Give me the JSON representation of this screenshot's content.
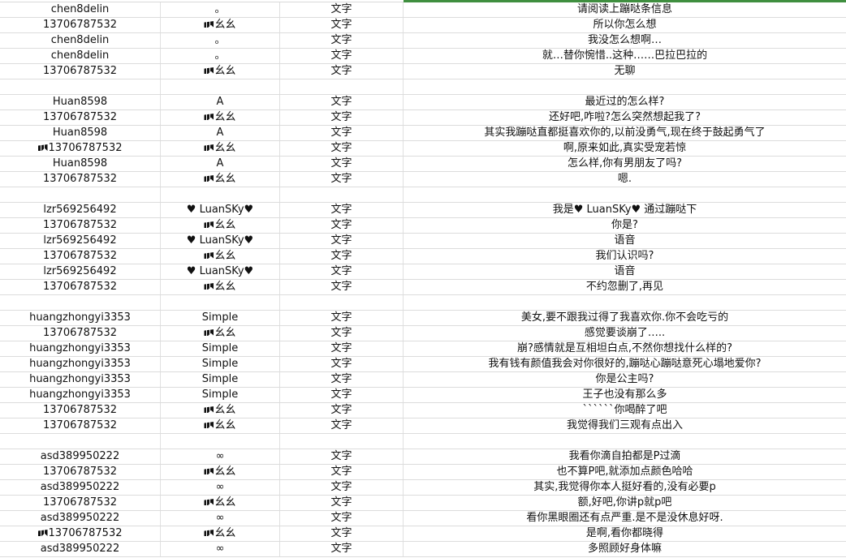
{
  "sheet": {
    "accent_color": "#3f8f3f",
    "rows": [
      {
        "user": "chen8delin",
        "nick": "。",
        "type": "文字",
        "msg": "请阅读上蹦哒条信息"
      },
      {
        "user": "13706787532",
        "nick": "幺幺",
        "nick_icon": "emoji-glyph",
        "type": "文字",
        "msg": "所以你怎么想"
      },
      {
        "user": "chen8delin",
        "nick": "。",
        "type": "文字",
        "msg": "我没怎么想啊…"
      },
      {
        "user": "chen8delin",
        "nick": "。",
        "type": "文字",
        "msg": "就…替你惋惜..这种……巴拉巴拉的"
      },
      {
        "user": "13706787532",
        "nick": "幺幺",
        "nick_icon": "emoji-glyph",
        "type": "文字",
        "msg": "无聊"
      },
      {},
      {
        "user": "Huan8598",
        "nick": "A",
        "type": "文字",
        "msg": "最近过的怎么样?"
      },
      {
        "user": "13706787532",
        "nick": "幺幺",
        "nick_icon": "emoji-glyph",
        "type": "文字",
        "msg": "还好吧,咋啦?怎么突然想起我了?"
      },
      {
        "user": "Huan8598",
        "nick": "A",
        "type": "文字",
        "msg": "其实我蹦哒直都挺喜欢你的,以前没勇气,现在终于鼓起勇气了"
      },
      {
        "user": "13706787532",
        "user_icon": "emoji-glyph",
        "nick": "幺幺",
        "nick_icon": "emoji-glyph",
        "type": "文字",
        "msg": "啊,原来如此,真实受宠若惊"
      },
      {
        "user": "Huan8598",
        "nick": "A",
        "type": "文字",
        "msg": "怎么样,你有男朋友了吗?"
      },
      {
        "user": "13706787532",
        "nick": "幺幺",
        "nick_icon": "emoji-glyph",
        "type": "文字",
        "msg": "嗯."
      },
      {},
      {
        "user": "lzr569256492",
        "nick": "♥ LuanSKy♥",
        "type": "文字",
        "msg": "我是♥ LuanSKy♥ 通过蹦哒下"
      },
      {
        "user": "13706787532",
        "nick": "幺幺",
        "nick_icon": "emoji-glyph",
        "type": "文字",
        "msg": "你是?"
      },
      {
        "user": "lzr569256492",
        "nick": "♥ LuanSKy♥",
        "type": "文字",
        "msg": "语音"
      },
      {
        "user": "13706787532",
        "nick": "幺幺",
        "nick_icon": "emoji-glyph",
        "type": "文字",
        "msg": "我们认识吗?"
      },
      {
        "user": "lzr569256492",
        "nick": "♥ LuanSKy♥",
        "type": "文字",
        "msg": "语音"
      },
      {
        "user": "13706787532",
        "nick": "幺幺",
        "nick_icon": "emoji-glyph",
        "type": "文字",
        "msg": "不约忽删了,再见"
      },
      {},
      {
        "user": "huangzhongyi3353",
        "nick": "Simple",
        "type": "文字",
        "msg": "美女,要不跟我过得了我喜欢你.你不会吃亏的"
      },
      {
        "user": "13706787532",
        "nick": "幺幺",
        "nick_icon": "emoji-glyph",
        "type": "文字",
        "msg": "感觉要谈崩了….."
      },
      {
        "user": "huangzhongyi3353",
        "nick": "Simple",
        "type": "文字",
        "msg": "崩?感情就是互相坦白点,不然你想找什么样的?"
      },
      {
        "user": "huangzhongyi3353",
        "nick": "Simple",
        "type": "文字",
        "msg": "我有钱有颜值我会对你很好的,蹦哒心蹦哒意死心塌地爱你?"
      },
      {
        "user": "huangzhongyi3353",
        "nick": "Simple",
        "type": "文字",
        "msg": "你是公主吗?"
      },
      {
        "user": "huangzhongyi3353",
        "nick": "Simple",
        "type": "文字",
        "msg": "王子也没有那么多"
      },
      {
        "user": "13706787532",
        "nick": "幺幺",
        "nick_icon": "emoji-glyph",
        "type": "文字",
        "msg": "``````你喝醉了吧"
      },
      {
        "user": "13706787532",
        "nick": "幺幺",
        "nick_icon": "emoji-glyph",
        "type": "文字",
        "msg": "我觉得我们三观有点出入"
      },
      {},
      {
        "user": "asd389950222",
        "nick": "∞",
        "type": "文字",
        "msg": "我看你滴自拍都是P过滴"
      },
      {
        "user": "13706787532",
        "nick": "幺幺",
        "nick_icon": "emoji-glyph",
        "type": "文字",
        "msg": "也不算P吧,就添加点颜色哈哈"
      },
      {
        "user": "asd389950222",
        "nick": "∞",
        "type": "文字",
        "msg": "其实,我觉得你本人挺好看的,没有必要p"
      },
      {
        "user": "13706787532",
        "nick": "幺幺",
        "nick_icon": "emoji-glyph",
        "type": "文字",
        "msg": "额,好吧,你讲p就p吧"
      },
      {
        "user": "asd389950222",
        "nick": "∞",
        "type": "文字",
        "msg": "看你黑眼圈还有点严重.是不是没休息好呀."
      },
      {
        "user": "13706787532",
        "user_icon": "emoji-glyph",
        "nick": "幺幺",
        "nick_icon": "emoji-glyph",
        "type": "文字",
        "msg": "是啊,看你都晓得"
      },
      {
        "user": "asd389950222",
        "nick": "∞",
        "type": "文字",
        "msg": "多照顾好身体嘛"
      }
    ]
  }
}
